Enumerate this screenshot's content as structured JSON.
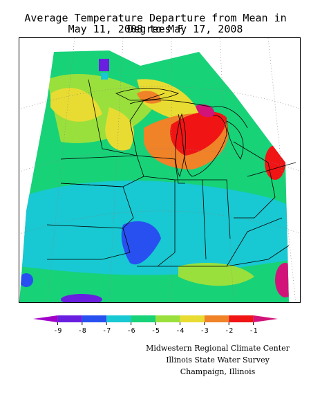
{
  "map": {
    "title_line1": "Average Temperature Departure from Mean in Degrees F",
    "title_line2": "May 11, 2008 to May 17, 2008"
  },
  "legend": {
    "ticks": [
      "-9",
      "-8",
      "-7",
      "-6",
      "-5",
      "-4",
      "-3",
      "-2",
      "-1"
    ],
    "colors": [
      "#a000c8",
      "#6a1ee0",
      "#2850f0",
      "#18c8d2",
      "#18d278",
      "#9ae03c",
      "#e8dc32",
      "#f08228",
      "#f01414",
      "#d2147a"
    ]
  },
  "credits": {
    "line1": "Midwestern Regional Climate Center",
    "line2": "Illinois State Water Survey",
    "line3": "Champaign, Illinois"
  }
}
